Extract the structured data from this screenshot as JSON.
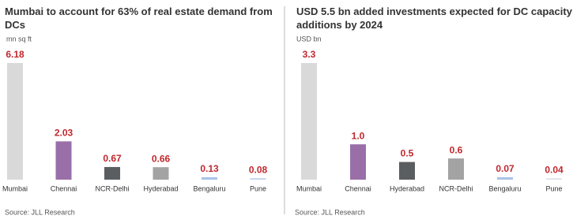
{
  "chart_data": [
    {
      "type": "bar",
      "title": "Mumbai to account for 63% of real estate demand from DCs",
      "y_label": "mn sq ft",
      "categories": [
        "Mumbai",
        "Chennai",
        "NCR-Delhi",
        "Hyderabad",
        "Bengaluru",
        "Pune"
      ],
      "values": [
        6.18,
        2.03,
        0.67,
        0.66,
        0.13,
        0.08
      ],
      "colors": [
        "#d9d9d9",
        "#9a6fa8",
        "#5b5e60",
        "#a3a3a3",
        "#a9c3e6",
        "#c3d4ec"
      ],
      "source": "Source: JLL Research"
    },
    {
      "type": "bar",
      "title": "USD 5.5 bn added investments expected for DC capacity additions by 2024",
      "y_label": "USD bn",
      "categories": [
        "Mumbai",
        "Chennai",
        "Hyderabad",
        "NCR-Delhi",
        "Bengaluru",
        "Pune"
      ],
      "values": [
        3.3,
        1.0,
        0.5,
        0.6,
        0.07,
        0.04
      ],
      "value_labels": [
        "3.3",
        "1.0",
        "0.5",
        "0.6",
        "0.07",
        "0.04"
      ],
      "colors": [
        "#d9d9d9",
        "#9a6fa8",
        "#5b5e60",
        "#a3a3a3",
        "#a9c3e6",
        "#dde3ea"
      ],
      "source": "Source: JLL Research"
    }
  ]
}
